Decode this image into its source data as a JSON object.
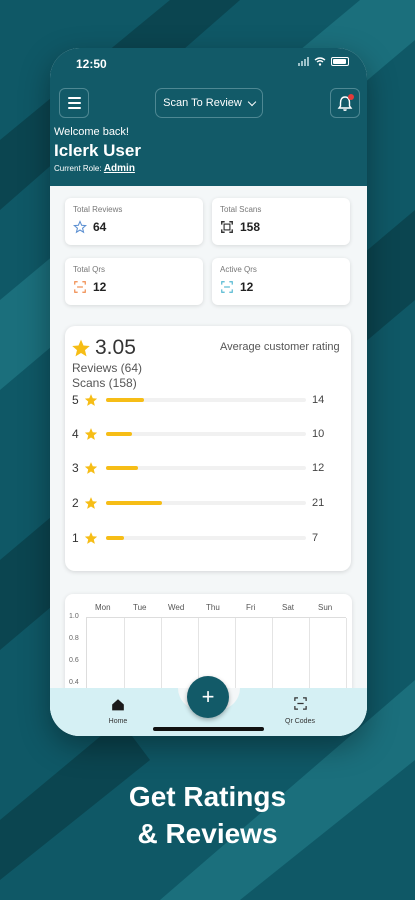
{
  "status": {
    "time": "12:50"
  },
  "header": {
    "select_label": "Scan To Review",
    "welcome": "Welcome back!",
    "user_name": "Iclerk User",
    "role_prefix": "Current Role:",
    "role_value": "Admin"
  },
  "stats": [
    {
      "label": "Total Reviews",
      "value": "64",
      "icon": "star-outline-icon",
      "color": "#5b8fd1"
    },
    {
      "label": "Total Scans",
      "value": "158",
      "icon": "scan-icon",
      "color": "#333333"
    },
    {
      "label": "Total Qrs",
      "value": "12",
      "icon": "qr-icon",
      "color": "#f08a4b"
    },
    {
      "label": "Active Qrs",
      "value": "12",
      "icon": "qr-active-icon",
      "color": "#53b8d1"
    }
  ],
  "rating": {
    "average": "3.05",
    "label": "Average customer rating",
    "reviews": "Reviews (64)",
    "scans": "Scans (158)",
    "distribution": [
      {
        "stars": "5",
        "count": "14",
        "fraction": 0.19
      },
      {
        "stars": "4",
        "count": "10",
        "fraction": 0.13
      },
      {
        "stars": "3",
        "count": "12",
        "fraction": 0.16
      },
      {
        "stars": "2",
        "count": "21",
        "fraction": 0.28
      },
      {
        "stars": "1",
        "count": "7",
        "fraction": 0.09
      }
    ]
  },
  "week_chart": {
    "days": [
      "Mon",
      "Tue",
      "Wed",
      "Thu",
      "Fri",
      "Sat",
      "Sun"
    ],
    "y_ticks": [
      "1.0",
      "0.8",
      "0.6",
      "0.4"
    ]
  },
  "nav": {
    "home": "Home",
    "qr": "Qr Codes",
    "fab": "+"
  },
  "promo": {
    "line1": "Get Ratings",
    "line2": "& Reviews"
  },
  "colors": {
    "accent": "#125a68",
    "star": "#f6bd16",
    "background": "#0f5866"
  }
}
